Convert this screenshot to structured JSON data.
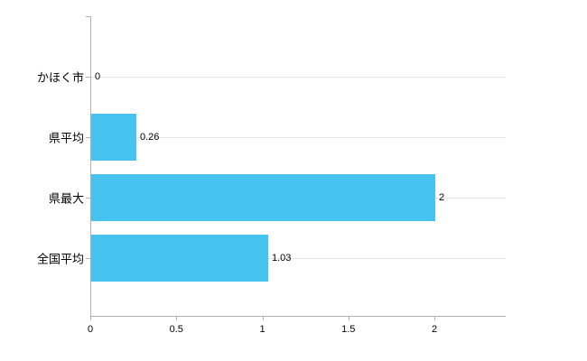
{
  "chart_data": {
    "type": "bar",
    "orientation": "horizontal",
    "title": "",
    "xlabel": "",
    "ylabel": "",
    "categories": [
      "かほく市",
      "県平均",
      "県最大",
      "全国平均"
    ],
    "values": [
      0,
      0.26,
      2,
      1.03
    ],
    "value_labels": [
      "0",
      "0.26",
      "2",
      "1.03"
    ],
    "x_ticks": [
      0,
      0.5,
      1,
      1.5,
      2
    ],
    "x_tick_labels": [
      "0",
      "0.5",
      "1",
      "1.5",
      "2"
    ],
    "xlim": [
      0,
      2.42
    ],
    "bar_color": "#47c3ef",
    "grid": "horizontal-category-lines",
    "legend_position": "none",
    "background_color": "#ffffff"
  }
}
